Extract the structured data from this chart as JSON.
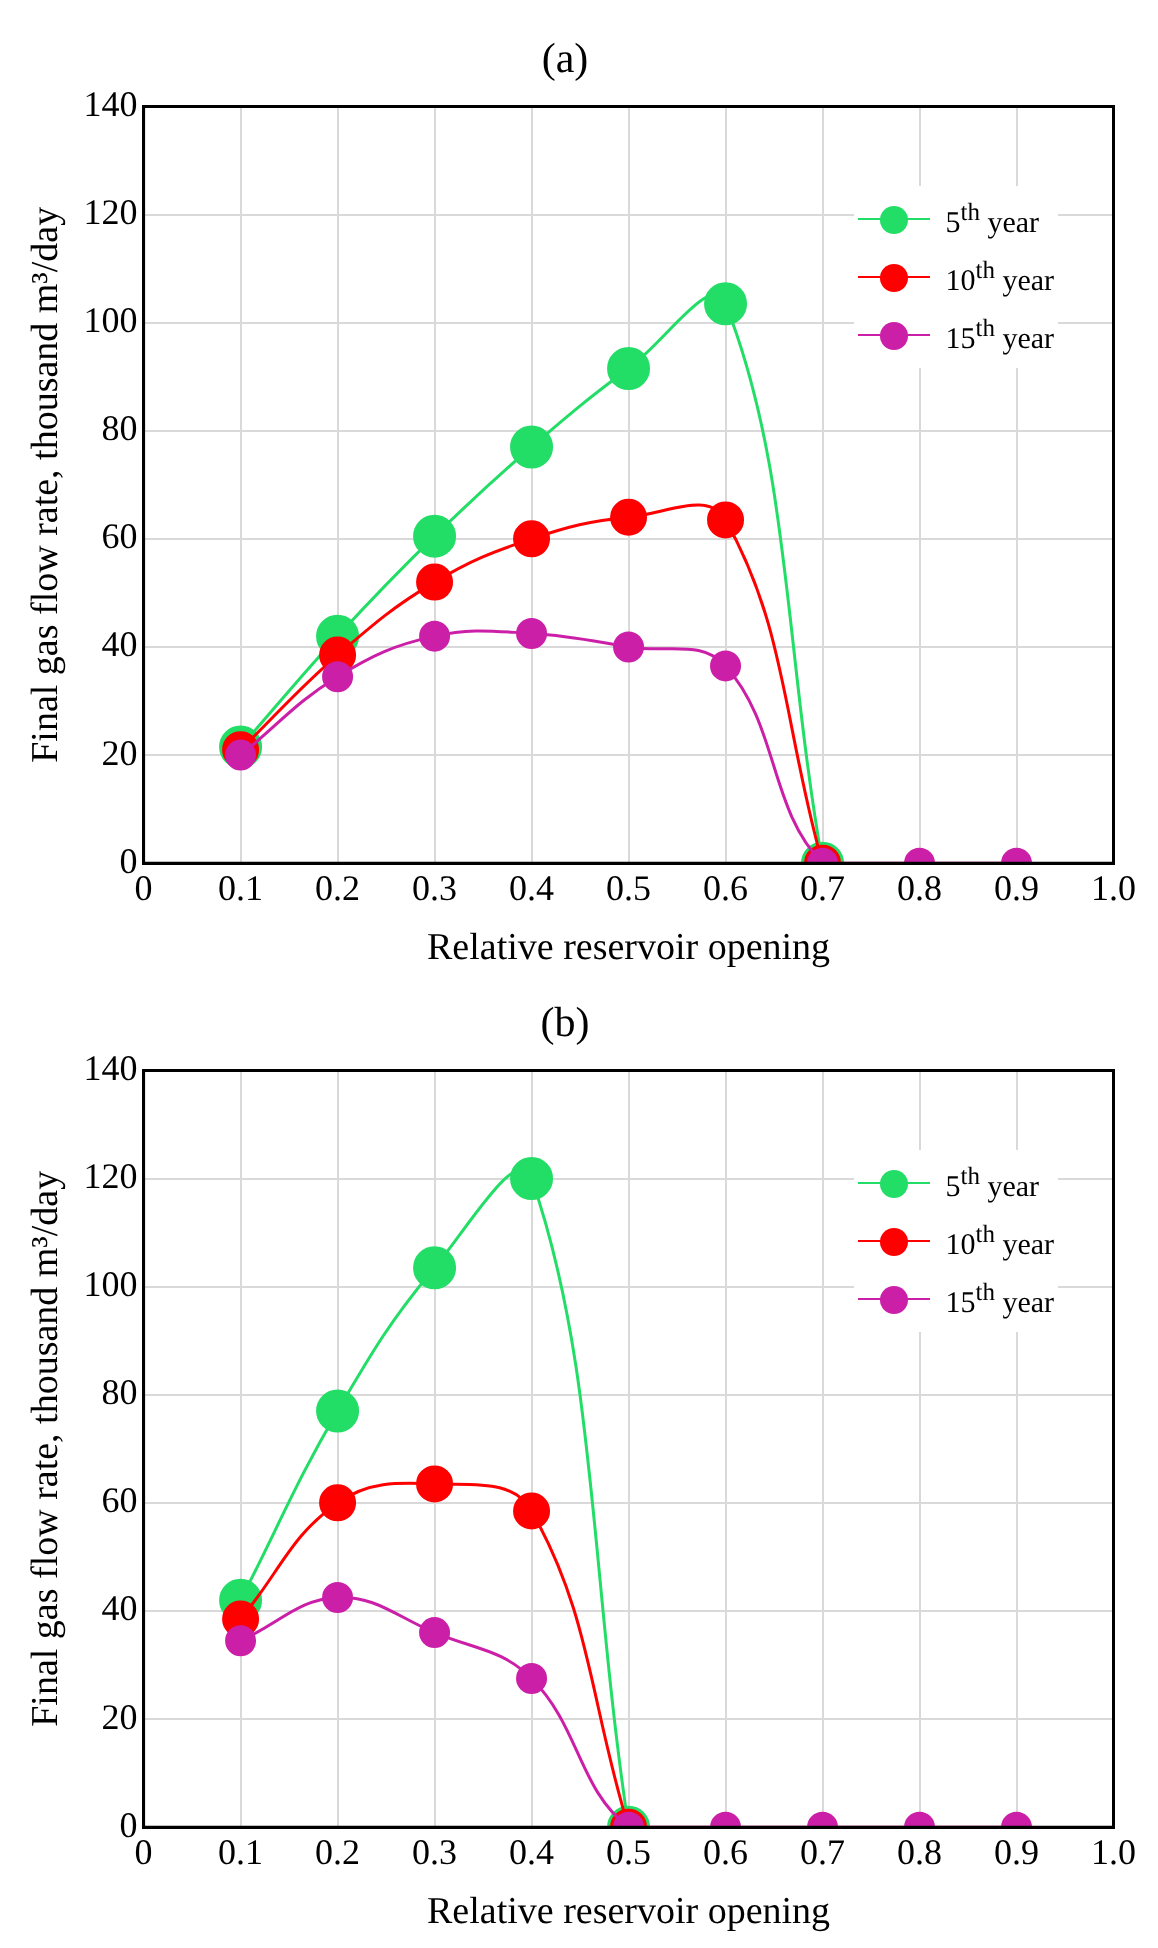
{
  "chart_data": [
    {
      "type": "line",
      "title": "(a)",
      "xlabel": "Relative reservoir opening",
      "ylabel": "Final gas flow rate, thousand m³/day",
      "x": [
        0.1,
        0.2,
        0.3,
        0.4,
        0.5,
        0.6,
        0.7,
        0.8,
        0.9
      ],
      "xlim": [
        0,
        1
      ],
      "xticks": [
        0,
        0.1,
        0.2,
        0.3,
        0.4,
        0.5,
        0.6,
        0.7,
        0.8,
        0.9,
        {
          "value": 1,
          "label": "1.0"
        }
      ],
      "ylim": [
        0,
        140
      ],
      "yticks": [
        0,
        20,
        40,
        60,
        80,
        100,
        120,
        140
      ],
      "grid": true,
      "legend": "top right",
      "marker": "circle",
      "line_style": "solid",
      "series": [
        {
          "name": "5$^{th}$ year",
          "color": "#22dd66",
          "values": [
            21.5,
            42,
            60.5,
            77,
            91.5,
            103.5,
            0,
            null,
            null
          ]
        },
        {
          "name": "10$^{th}$ year",
          "color": "#ff0000",
          "values": [
            21,
            38.5,
            52,
            60,
            64,
            63.5,
            0,
            null,
            null
          ]
        },
        {
          "name": "15$^{th}$ year",
          "color": "#cc1fa8",
          "values": [
            20,
            34.5,
            42,
            42.5,
            40,
            36.5,
            0,
            0,
            0
          ]
        }
      ]
    },
    {
      "type": "line",
      "title": "(b)",
      "xlabel": "Relative reservoir opening",
      "ylabel": "Final gas flow rate, thousand m³/day",
      "x": [
        0.1,
        0.2,
        0.3,
        0.4,
        0.5,
        0.6,
        0.7,
        0.8,
        0.9
      ],
      "xlim": [
        0,
        1
      ],
      "xticks": [
        0,
        0.1,
        0.2,
        0.3,
        0.4,
        0.5,
        0.6,
        0.7,
        0.8,
        0.9,
        {
          "value": 1,
          "label": "1.0"
        }
      ],
      "ylim": [
        0,
        140
      ],
      "yticks": [
        0,
        20,
        40,
        60,
        80,
        100,
        120,
        140
      ],
      "grid": true,
      "legend": "top right",
      "marker": "circle",
      "line_style": "solid",
      "series": [
        {
          "name": "5$^{th}$ year",
          "color": "#22dd66",
          "values": [
            42,
            77,
            103.5,
            120,
            0,
            null,
            null,
            null,
            null
          ]
        },
        {
          "name": "10$^{th}$ year",
          "color": "#ff0000",
          "values": [
            38.5,
            60,
            63.5,
            58.5,
            0,
            null,
            null,
            null,
            null
          ]
        },
        {
          "name": "15$^{th}$ year",
          "color": "#cc1fa8",
          "values": [
            34.5,
            42.5,
            36,
            27.5,
            0,
            0,
            0,
            0,
            0
          ]
        }
      ]
    }
  ]
}
